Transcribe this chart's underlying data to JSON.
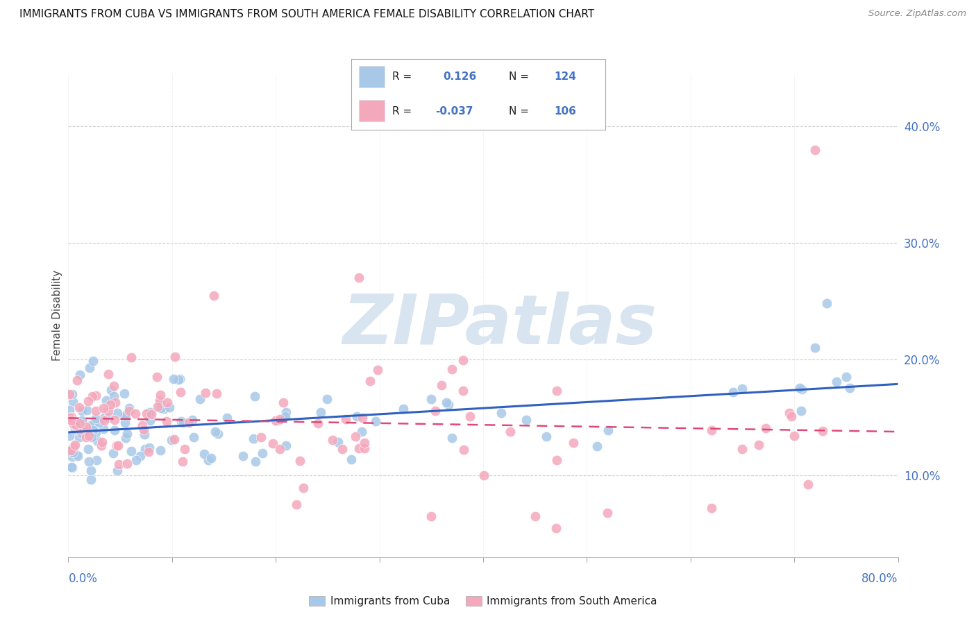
{
  "title": "IMMIGRANTS FROM CUBA VS IMMIGRANTS FROM SOUTH AMERICA FEMALE DISABILITY CORRELATION CHART",
  "source": "Source: ZipAtlas.com",
  "ylabel": "Female Disability",
  "y_ticks": [
    0.1,
    0.2,
    0.3,
    0.4
  ],
  "y_tick_labels": [
    "10.0%",
    "20.0%",
    "30.0%",
    "40.0%"
  ],
  "xlim": [
    0.0,
    0.8
  ],
  "ylim": [
    0.03,
    0.445
  ],
  "color_cuba": "#a8c8e8",
  "color_south_america": "#f4a8bc",
  "color_line_cuba": "#3060c0",
  "color_line_sa": "#e04878",
  "label_cuba": "Immigrants from Cuba",
  "label_sa": "Immigrants from South America",
  "watermark_text": "ZIPatlas",
  "watermark_color": "#d8e4f0",
  "tick_color": "#4472c4",
  "grid_color": "#cccccc"
}
